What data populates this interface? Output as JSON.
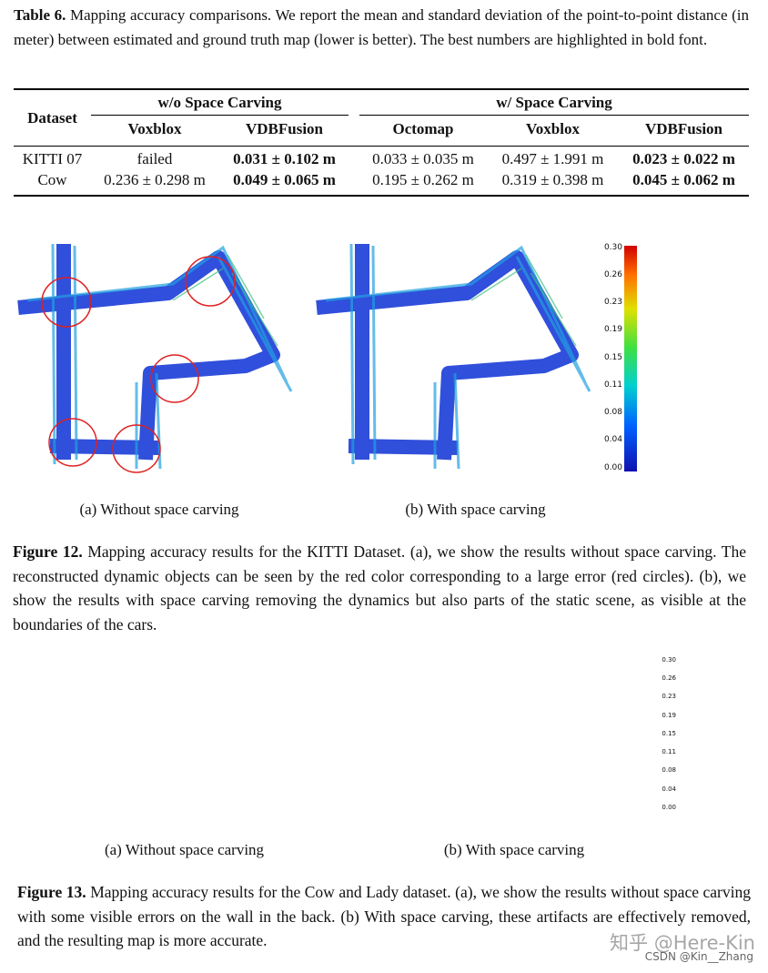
{
  "table": {
    "caption_label": "Table 6.",
    "caption_text": "Mapping accuracy comparisons. We report the mean and standard deviation of the point-to-point distance (in meter) between estimated and ground truth map (lower is better). The best numbers are highlighted in bold font.",
    "header": {
      "dataset": "Dataset",
      "group_without": "w/o Space Carving",
      "group_with": "w/ Space Carving",
      "columns": [
        "Voxblox",
        "VDBFusion",
        "Octomap",
        "Voxblox",
        "VDBFusion"
      ]
    },
    "rows": [
      [
        "KITTI 07",
        "failed",
        "0.031 ± 0.102 m",
        "0.033 ± 0.035 m",
        "0.497 ± 1.991 m",
        "0.023 ± 0.022 m"
      ],
      [
        "Cow",
        "0.236 ± 0.298 m",
        "0.049 ± 0.065 m",
        "0.195 ± 0.262 m",
        "0.319 ± 0.398 m",
        "0.045 ± 0.062 m"
      ]
    ]
  },
  "figure12": {
    "colorbar": [
      "0.30",
      "0.26",
      "0.23",
      "0.19",
      "0.15",
      "0.11",
      "0.08",
      "0.04",
      "0.00"
    ],
    "subcaptions": [
      {
        "label": "(a)",
        "text": "Without space carving"
      },
      {
        "label": "(b)",
        "text": "With space carving"
      }
    ],
    "caption_label": "Figure 12.",
    "caption_text": "Mapping accuracy results for the KITTI Dataset. (a), we show the results without space carving. The reconstructed dynamic objects can be seen by the red color corresponding to a large error (red circles). (b), we show the results with space carving removing the dynamics but also parts of the static scene, as visible at the boundaries of the cars."
  },
  "figure13": {
    "colorbar": [
      "0.30",
      "0.26",
      "0.23",
      "0.19",
      "0.15",
      "0.11",
      "0.08",
      "0.04",
      "0.00"
    ],
    "subcaptions": [
      {
        "label": "(a)",
        "text": "Without space carving"
      },
      {
        "label": "(b)",
        "text": "With space carving"
      }
    ],
    "caption_label": "Figure 13.",
    "caption_text": "Mapping accuracy results for the Cow and Lady dataset. (a), we show the results without space carving with some visible errors on the wall in the back. (b) With space carving, these artifacts are effectively removed, and the resulting map is more accurate."
  },
  "watermark": {
    "zhihu": "知乎 @Here-Kin",
    "csdn": "CSDN @Kin__Zhang"
  }
}
